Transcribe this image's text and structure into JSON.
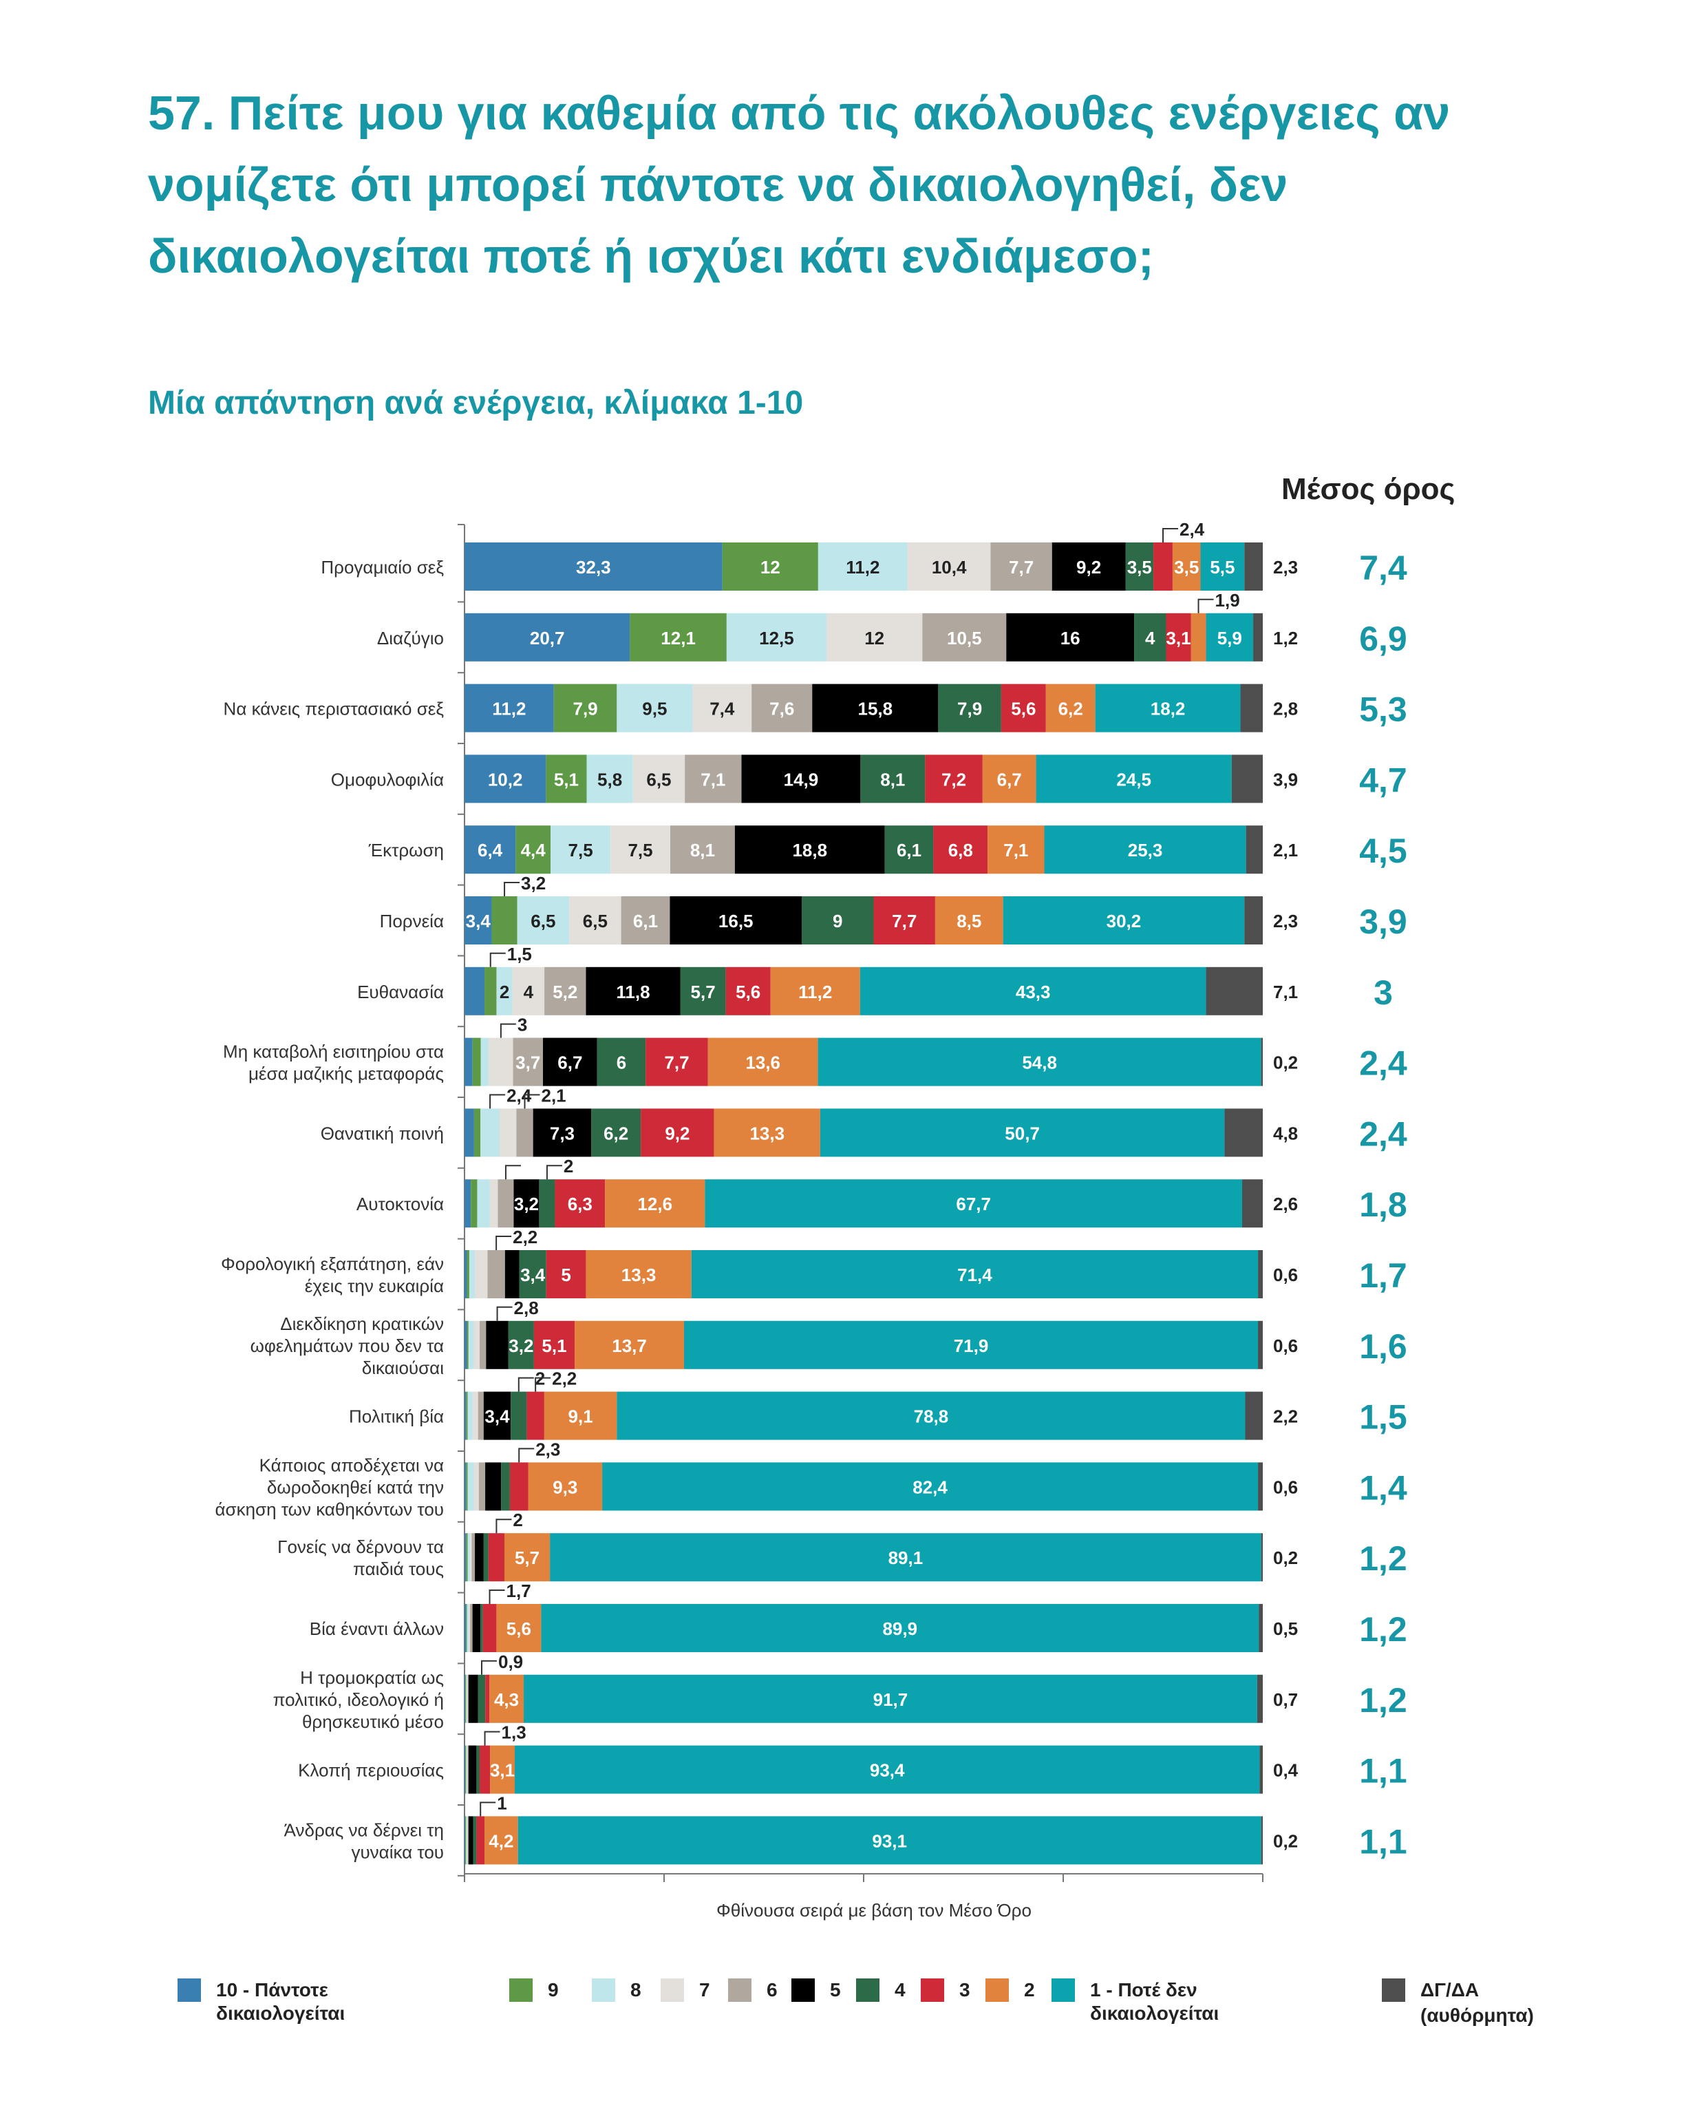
{
  "title": "57. Πείτε μου για καθεμία από τις ακόλουθες ενέργειες αν νομίζετε ότι μπορεί πάντοτε να δικαιολογηθεί, δεν δικαιολογείται ποτέ ή ισχύει κάτι ενδιάμεσο;",
  "subtitle": "Μία απάντηση ανά ενέργεια, κλίμακα 1-10",
  "mean_header": "Μέσος όρος",
  "x_note": "Φθίνουσα σειρά με βάση τον Μέσο Όρο",
  "colors": {
    "c10": "#3a7fb2",
    "c9": "#5e9a45",
    "c8": "#bfe6ea",
    "c7": "#e3e0dc",
    "c6": "#b0a89f",
    "c5": "#000000",
    "c4": "#2c6a48",
    "c3": "#cf2a37",
    "c2": "#e1823d",
    "c1": "#0ba3ae",
    "cdk": "#4e4e4e",
    "accent": "#1797a6"
  },
  "legend": [
    {
      "key": "c10",
      "label": "10 - Πάντοτε δικαιολογείται"
    },
    {
      "key": "c9",
      "label": "9"
    },
    {
      "key": "c8",
      "label": "8"
    },
    {
      "key": "c7",
      "label": "7"
    },
    {
      "key": "c6",
      "label": "6"
    },
    {
      "key": "c5",
      "label": "5"
    },
    {
      "key": "c4",
      "label": "4"
    },
    {
      "key": "c3",
      "label": "3"
    },
    {
      "key": "c2",
      "label": "2"
    },
    {
      "key": "c1",
      "label": "1 - Ποτέ δεν δικαιολογείται"
    },
    {
      "key": "cdk",
      "label": "ΔΓ/ΔΑ",
      "label2": "(αυθόρμητα)"
    }
  ],
  "chart_data": {
    "type": "bar",
    "orientation": "horizontal-stacked-100",
    "series_keys": [
      "c10",
      "c9",
      "c8",
      "c7",
      "c6",
      "c5",
      "c4",
      "c3",
      "c2",
      "c1",
      "cdk"
    ],
    "rows": [
      {
        "label": [
          "Προγαμιαίο σεξ"
        ],
        "values": [
          32.3,
          12,
          11.2,
          10.4,
          7.7,
          9.2,
          3.5,
          2.4,
          3.5,
          5.5,
          2.3
        ],
        "labels": [
          "32,3",
          "12",
          "11,2",
          "10,4",
          "7,7",
          "9,2",
          "3,5",
          "2,4",
          "3,5",
          "5,5",
          "2,3"
        ],
        "callouts": [
          7
        ],
        "mean": "7,4"
      },
      {
        "label": [
          "Διαζύγιο"
        ],
        "values": [
          20.7,
          12.1,
          12.5,
          12,
          10.5,
          16,
          4,
          3.1,
          1.9,
          5.9,
          1.2
        ],
        "labels": [
          "20,7",
          "12,1",
          "12,5",
          "12",
          "10,5",
          "16",
          "4",
          "3,1",
          "1,9",
          "5,9",
          "1,2"
        ],
        "callouts": [
          8
        ],
        "mean": "6,9"
      },
      {
        "label": [
          "Να κάνεις περιστασιακό σεξ"
        ],
        "values": [
          11.2,
          7.9,
          9.5,
          7.4,
          7.6,
          15.8,
          7.9,
          5.6,
          6.2,
          18.2,
          2.8
        ],
        "labels": [
          "11,2",
          "7,9",
          "9,5",
          "7,4",
          "7,6",
          "15,8",
          "7,9",
          "5,6",
          "6,2",
          "18,2",
          "2,8"
        ],
        "callouts": [],
        "mean": "5,3"
      },
      {
        "label": [
          "Ομοφυλοφιλία"
        ],
        "values": [
          10.2,
          5.1,
          5.8,
          6.5,
          7.1,
          14.9,
          8.1,
          7.2,
          6.7,
          24.5,
          3.9
        ],
        "labels": [
          "10,2",
          "5,1",
          "5,8",
          "6,5",
          "7,1",
          "14,9",
          "8,1",
          "7,2",
          "6,7",
          "24,5",
          "3,9"
        ],
        "callouts": [],
        "mean": "4,7"
      },
      {
        "label": [
          "Έκτρωση"
        ],
        "values": [
          6.4,
          4.4,
          7.5,
          7.5,
          8.1,
          18.8,
          6.1,
          6.8,
          7.1,
          25.3,
          2.1
        ],
        "labels": [
          "6,4",
          "4,4",
          "7,5",
          "7,5",
          "8,1",
          "18,8",
          "6,1",
          "6,8",
          "7,1",
          "25,3",
          "2,1"
        ],
        "callouts": [],
        "mean": "4,5"
      },
      {
        "label": [
          "Πορνεία"
        ],
        "values": [
          3.4,
          3.2,
          6.5,
          6.5,
          6.1,
          16.5,
          9,
          7.7,
          8.5,
          30.2,
          2.3
        ],
        "labels": [
          "3,4",
          "3,2",
          "6,5",
          "6,5",
          "6,1",
          "16,5",
          "9",
          "7,7",
          "8,5",
          "30,2",
          "2,3"
        ],
        "callouts": [
          1
        ],
        "mean": "3,9"
      },
      {
        "label": [
          "Ευθανασία"
        ],
        "values": [
          2.5,
          1.5,
          2,
          4,
          5.2,
          11.8,
          5.7,
          5.6,
          11.2,
          43.3,
          7.1
        ],
        "labels": [
          "",
          "1,5",
          "2",
          "4",
          "5,2",
          "11,8",
          "5,7",
          "5,6",
          "11,2",
          "43,3",
          "7,1"
        ],
        "callouts": [
          1
        ],
        "mean": "3"
      },
      {
        "label": [
          "Μη καταβολή εισιτηρίου στα",
          "μέσα μαζικής μεταφοράς"
        ],
        "values": [
          1,
          1,
          1,
          3,
          3.7,
          6.7,
          6,
          7.7,
          13.6,
          54.8,
          0.2
        ],
        "labels": [
          "",
          "",
          "",
          "3",
          "3,7",
          "6,7",
          "6",
          "7,7",
          "13,6",
          "54,8",
          "0,2"
        ],
        "callouts": [
          3
        ],
        "mean": "2,4"
      },
      {
        "label": [
          "Θανατική ποινή"
        ],
        "values": [
          1.2,
          0.8,
          2.4,
          2.1,
          2.1,
          7.3,
          6.2,
          9.2,
          13.3,
          50.7,
          4.8
        ],
        "labels": [
          "",
          "",
          "2,4",
          "",
          "2,1",
          "7,3",
          "6,2",
          "9,2",
          "13,3",
          "50,7",
          "4,8"
        ],
        "callouts": [
          2,
          4
        ],
        "mean": "2,4"
      },
      {
        "label": [
          "Αυτοκτονία"
        ],
        "values": [
          0.8,
          0.8,
          1.6,
          1,
          2,
          3.2,
          2,
          6.3,
          12.6,
          67.7,
          2.6
        ],
        "labels": [
          "",
          "",
          "",
          "",
          "",
          "3,2",
          "2",
          "6,3",
          "12,6",
          "67,7",
          "2,6"
        ],
        "callouts": [
          4,
          6
        ],
        "mean": "1,8"
      },
      {
        "label": [
          "Φορολογική εξαπάτηση, εάν",
          "έχεις την ευκαιρία"
        ],
        "values": [
          0.3,
          0.3,
          0.7,
          1.6,
          2.2,
          1.8,
          3.4,
          5,
          13.3,
          71.4,
          0.6
        ],
        "labels": [
          "",
          "",
          "",
          "",
          "2,2",
          "",
          "3,4",
          "5",
          "13,3",
          "71,4",
          "0,6"
        ],
        "callouts": [
          4
        ],
        "mean": "1,7"
      },
      {
        "label": [
          "Διεκδίκηση κρατικών",
          "ωφελημάτων που δεν τα",
          "δικαιούσαι"
        ],
        "values": [
          0.3,
          0.2,
          0.7,
          0.7,
          0.8,
          2.8,
          3.2,
          5.1,
          13.7,
          71.9,
          0.6
        ],
        "labels": [
          "",
          "",
          "",
          "",
          "",
          "2,8",
          "3,2",
          "5,1",
          "13,7",
          "71,9",
          "0,6"
        ],
        "callouts": [
          5
        ],
        "mean": "1,6"
      },
      {
        "label": [
          "Πολιτική βία"
        ],
        "values": [
          0.2,
          0.2,
          0.6,
          0.7,
          0.7,
          3.4,
          2,
          2.2,
          9.1,
          78.8,
          2.2
        ],
        "labels": [
          "",
          "",
          "",
          "",
          "",
          "3,4",
          "2",
          "2,2",
          "9,1",
          "78,8",
          "2,2"
        ],
        "callouts": [
          6,
          7
        ],
        "mean": "1,5"
      },
      {
        "label": [
          "Κάποιος αποδέχεται να",
          "δωροδοκηθεί κατά την",
          "άσκηση των καθηκόντων του"
        ],
        "values": [
          0.2,
          0.2,
          0.8,
          0.6,
          0.8,
          2,
          1.1,
          2.3,
          9.3,
          82.4,
          0.6
        ],
        "labels": [
          "",
          "",
          "",
          "",
          "",
          "",
          "",
          "2,3",
          "9,3",
          "82,4",
          "0,6"
        ],
        "callouts": [
          7
        ],
        "mean": "1,4"
      },
      {
        "label": [
          "Γονείς να δέρνουν τα",
          "παιδιά τους"
        ],
        "values": [
          0.2,
          0.2,
          0.3,
          0.2,
          0.4,
          1.1,
          0.6,
          2,
          5.7,
          89.1,
          0.2
        ],
        "labels": [
          "",
          "",
          "",
          "",
          "",
          "",
          "",
          "2",
          "5,7",
          "89,1",
          "0,2"
        ],
        "callouts": [
          7
        ],
        "mean": "1,2"
      },
      {
        "label": [
          "Βία έναντι άλλων"
        ],
        "values": [
          0.2,
          0.1,
          0.2,
          0.2,
          0.3,
          1,
          0.3,
          1.7,
          5.6,
          89.9,
          0.5
        ],
        "labels": [
          "",
          "",
          "",
          "",
          "",
          "",
          "",
          "1,7",
          "5,6",
          "89,9",
          "0,5"
        ],
        "callouts": [
          7
        ],
        "mean": "1,2"
      },
      {
        "label": [
          "Η τρομοκρατία ως",
          "πολιτικό, ιδεολογικό ή",
          "θρησκευτικό μέσο"
        ],
        "values": [
          0.1,
          0.1,
          0.1,
          0.1,
          0.1,
          1.2,
          0.9,
          0.5,
          4.3,
          91.7,
          0.7
        ],
        "labels": [
          "",
          "",
          "",
          "",
          "",
          "",
          "0,9",
          "",
          "4,3",
          "91,7",
          "0,7"
        ],
        "callouts": [
          6
        ],
        "mean": "1,2"
      },
      {
        "label": [
          "Κλοπή περιουσίας"
        ],
        "values": [
          0.1,
          0.1,
          0.1,
          0.1,
          0.1,
          1,
          0.4,
          1.3,
          3.1,
          93.4,
          0.4
        ],
        "labels": [
          "",
          "",
          "",
          "",
          "",
          "",
          "",
          "1,3",
          "3,1",
          "93,4",
          "0,4"
        ],
        "callouts": [
          7
        ],
        "mean": "1,1"
      },
      {
        "label": [
          "Άνδρας να δέρνει τη",
          "γυναίκα του"
        ],
        "values": [
          0.1,
          0.1,
          0.1,
          0.1,
          0.1,
          0.6,
          0.4,
          1,
          4.2,
          93.1,
          0.2
        ],
        "labels": [
          "",
          "",
          "",
          "",
          "",
          "",
          "",
          "1",
          "4,2",
          "93,1",
          "0,2"
        ],
        "callouts": [
          7
        ],
        "mean": "1,1"
      }
    ]
  }
}
